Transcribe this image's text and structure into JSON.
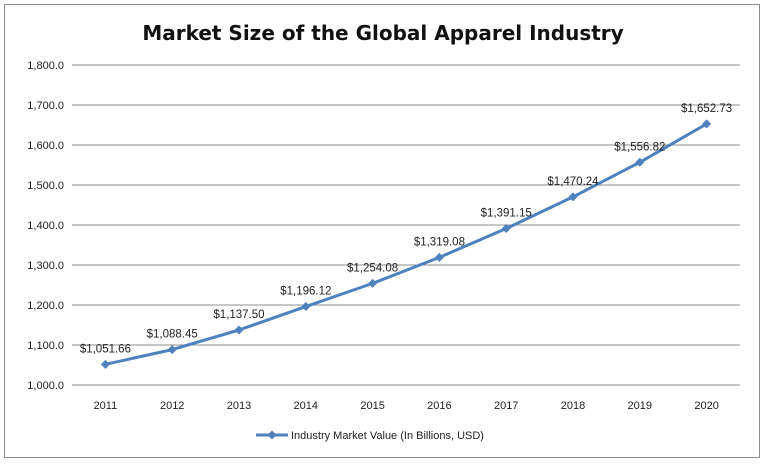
{
  "chart_data": {
    "type": "line",
    "title": "Market Size of the Global Apparel Industry",
    "categories": [
      "2011",
      "2012",
      "2013",
      "2014",
      "2015",
      "2016",
      "2017",
      "2018",
      "2019",
      "2020"
    ],
    "series": [
      {
        "name": "Industry Market Value (In Billions, USD)",
        "values": [
          1051.66,
          1088.45,
          1137.5,
          1196.12,
          1254.08,
          1319.08,
          1391.15,
          1470.24,
          1556.82,
          1652.73
        ],
        "data_labels": [
          "$1,051.66",
          "$1,088.45",
          "$1,137.50",
          "$1,196.12",
          "$1,254.08",
          "$1,319.08",
          "$1,391.15",
          "$1,470.24",
          "$1,556.82",
          "$1,652.73"
        ]
      }
    ],
    "yticks": [
      1000,
      1100,
      1200,
      1300,
      1400,
      1500,
      1600,
      1700,
      1800
    ],
    "ytick_labels": [
      "1,000.0",
      "1,100.0",
      "1,200.0",
      "1,300.0",
      "1,400.0",
      "1,500.0",
      "1,600.0",
      "1,700.0",
      "1,800.0"
    ],
    "ylim": [
      1000,
      1800
    ],
    "xlabel": "",
    "ylabel": "",
    "grid": true,
    "legend_position": "bottom",
    "line_color": "#4f81bd"
  }
}
